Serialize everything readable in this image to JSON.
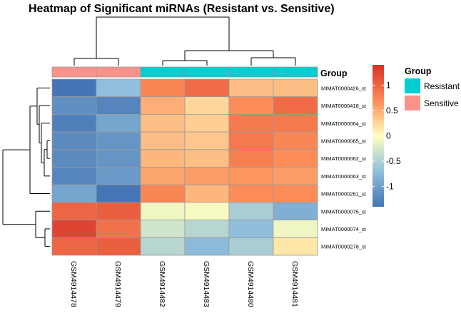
{
  "chart_data": {
    "type": "heatmap",
    "title": "Heatmap of Significant miRNAs (Resistant vs. Sensitive)",
    "columns": [
      "GSM4914478",
      "GSM4914479",
      "GSM4914482",
      "GSM4914483",
      "GSM4914480",
      "GSM4914481"
    ],
    "rows": [
      "MIMAT0000426_st",
      "MIMAT0000418_st",
      "MIMAT0000064_st",
      "MIMAT0000065_st",
      "MIMAT0000062_st",
      "MIMAT0000063_st",
      "MIMAT0000261_st",
      "MIMAT0000075_st",
      "MIMAT0000074_st",
      "MIMAT0000278_st"
    ],
    "values": [
      [
        -1.4,
        -0.7,
        0.75,
        0.95,
        0.4,
        0.4
      ],
      [
        -1.15,
        -1.25,
        0.5,
        0.25,
        0.7,
        0.95
      ],
      [
        -1.3,
        -0.95,
        0.4,
        0.3,
        0.85,
        0.85
      ],
      [
        -1.2,
        -1.1,
        0.4,
        0.35,
        0.85,
        0.75
      ],
      [
        -1.2,
        -1.1,
        0.45,
        0.4,
        0.8,
        0.7
      ],
      [
        -1.25,
        -1.05,
        0.55,
        0.6,
        0.65,
        0.6
      ],
      [
        -0.95,
        -1.4,
        0.75,
        0.45,
        0.7,
        0.7
      ],
      [
        1.0,
        1.05,
        -0.1,
        -0.05,
        -0.55,
        -0.85
      ],
      [
        1.25,
        0.9,
        -0.3,
        -0.45,
        -0.7,
        -0.1
      ],
      [
        1.0,
        1.05,
        -0.45,
        -0.75,
        -0.55,
        0.15
      ]
    ],
    "group_annotation": {
      "title": "Group",
      "labels": [
        "Sensitive",
        "Sensitive",
        "Resistant",
        "Resistant",
        "Resistant",
        "Resistant"
      ]
    },
    "colorbar": {
      "ticks": [
        1,
        0.5,
        0,
        -0.5,
        -1
      ],
      "tick_labels": [
        "1",
        "0.5",
        "0",
        "-0.5",
        "-1"
      ],
      "range": [
        -1.4,
        1.4
      ],
      "colors": [
        "#4575B4",
        "#FFFFBF",
        "#D73027"
      ]
    },
    "legend": {
      "title": "Group",
      "entries": [
        {
          "label": "Resistant",
          "color": "#00CED1"
        },
        {
          "label": "Sensitive",
          "color": "#F8938B"
        }
      ]
    }
  }
}
